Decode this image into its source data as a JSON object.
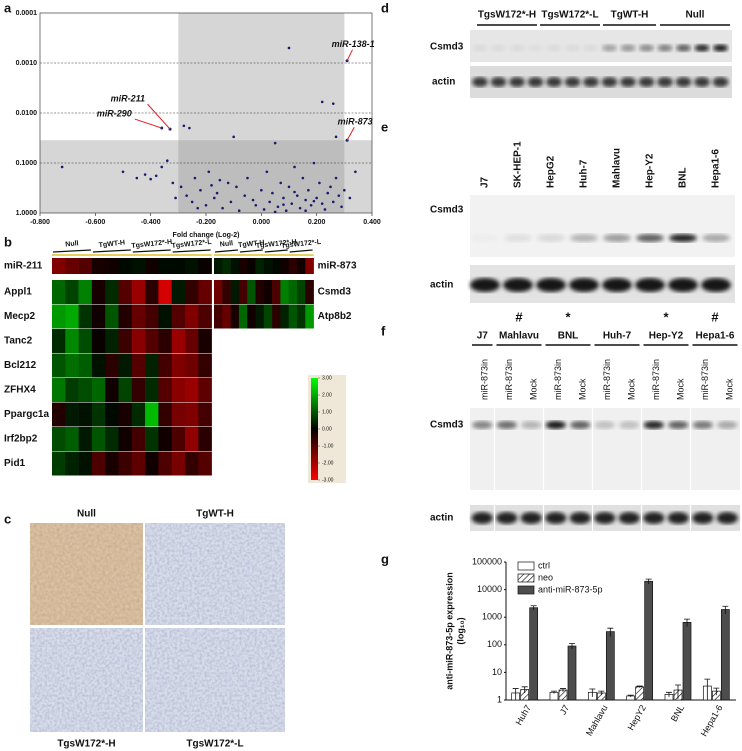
{
  "panel_labels": [
    "a",
    "b",
    "c",
    "d",
    "e",
    "f",
    "g"
  ],
  "chart_data": [
    {
      "type": "scatter",
      "xlabel": "Fold change (Log-2)",
      "color": "#1a1a6e",
      "log_y": true,
      "reverse_y": true,
      "xlim": [
        -0.8,
        0.4
      ],
      "ylim": [
        0.0001,
        1
      ],
      "xticks": [
        {
          "value": -0.8,
          "label": "-0.800"
        },
        {
          "value": -0.6,
          "label": "-0.600"
        },
        {
          "value": -0.4,
          "label": "-0.400"
        },
        {
          "value": -0.2,
          "label": "-0.200"
        },
        {
          "value": 0,
          "label": "0.000"
        },
        {
          "value": 0.2,
          "label": "0.200"
        },
        {
          "value": 0.4,
          "label": "0.400"
        }
      ],
      "yticks": [
        {
          "value": 0.0001,
          "label": "0.0001"
        },
        {
          "value": 0.001,
          "label": "0.0010"
        },
        {
          "value": 0.01,
          "label": "0.0100"
        },
        {
          "value": 0.1,
          "label": "0.1000"
        },
        {
          "value": 1,
          "label": "1.0000"
        }
      ],
      "grid": true,
      "shaded_x": [
        -0.3,
        0.3
      ],
      "shaded_y": [
        0.035,
        1
      ],
      "x": [
        0.1,
        0.22,
        0.26,
        -0.28,
        -0.26,
        0.27,
        -0.1,
        0.05,
        -0.72,
        -0.5,
        -0.45,
        -0.42,
        -0.4,
        -0.38,
        -0.36,
        -0.34,
        -0.32,
        -0.31,
        -0.29,
        -0.27,
        -0.25,
        -0.24,
        -0.22,
        -0.2,
        -0.19,
        -0.17,
        -0.16,
        -0.14,
        -0.12,
        -0.11,
        -0.09,
        -0.08,
        -0.06,
        -0.05,
        -0.03,
        -0.02,
        0.0,
        0.01,
        0.02,
        0.03,
        0.04,
        0.06,
        0.07,
        0.08,
        0.09,
        0.1,
        0.11,
        0.12,
        0.13,
        0.14,
        0.15,
        0.16,
        0.17,
        0.18,
        0.19,
        0.2,
        0.21,
        0.22,
        0.23,
        0.24,
        0.25,
        0.26,
        0.27,
        0.28,
        0.29,
        0.3,
        0.32,
        0.34,
        -0.23,
        -0.18,
        0.05,
        0.12,
        0.19,
        -0.15,
        0.08,
        0.16
      ],
      "y": [
        0.0005,
        0.006,
        0.0065,
        0.018,
        0.02,
        0.03,
        0.03,
        0.04,
        0.12,
        0.15,
        0.2,
        0.17,
        0.21,
        0.18,
        0.12,
        0.09,
        0.25,
        0.5,
        0.3,
        0.45,
        0.6,
        0.2,
        0.35,
        0.7,
        0.15,
        0.5,
        0.4,
        0.8,
        0.25,
        0.6,
        0.3,
        0.9,
        0.45,
        0.2,
        0.55,
        0.7,
        0.35,
        0.85,
        0.15,
        0.6,
        0.4,
        0.75,
        0.25,
        0.5,
        0.9,
        0.3,
        0.65,
        0.12,
        0.45,
        0.8,
        0.2,
        0.55,
        0.35,
        0.7,
        0.1,
        0.5,
        0.25,
        0.65,
        0.85,
        0.4,
        0.3,
        0.6,
        0.2,
        0.45,
        0.75,
        0.35,
        0.5,
        0.15,
        0.8,
        0.28,
        0.95,
        0.38,
        0.58,
        0.22,
        0.68,
        0.9
      ],
      "annotations": [
        {
          "text": "miR-138-1",
          "x": 0.31,
          "y": 0.0009,
          "color": "#e02020"
        },
        {
          "text": "miR-873",
          "x": 0.31,
          "y": 0.035,
          "color": "#e02020"
        },
        {
          "text": "miR-211",
          "x": -0.33,
          "y": 0.021,
          "color": "#e02020"
        },
        {
          "text": "miR-290",
          "x": -0.36,
          "y": 0.02,
          "color": "#e02020"
        }
      ]
    },
    {
      "type": "heatmap",
      "groups": [
        "Null",
        "TgWT-H",
        "TgsW172*-H",
        "TgsW172*-L"
      ],
      "rows": [
        "miR-211",
        "Appl1",
        "Mecp2",
        "Tanc2",
        "Bcl212",
        "ZFHX4",
        "Ppargc1a",
        "Irf2bp2",
        "Pid1"
      ],
      "values": [
        [
          -1.5,
          -1.2,
          -1.0,
          -0.3,
          -0.2,
          0.1,
          0.2,
          -0.2,
          0.1,
          0.1,
          0.2,
          -0.1
        ],
        [
          1.2,
          0.8,
          1.5,
          -0.3,
          0.5,
          -1.0,
          -1.8,
          -0.5,
          -2.5,
          0.3,
          -0.6,
          -1.2
        ],
        [
          1.8,
          2.0,
          0.6,
          -0.2,
          1.0,
          -0.4,
          -1.2,
          -0.8,
          0.2,
          -1.0,
          -1.5,
          -0.9
        ],
        [
          0.5,
          1.6,
          0.9,
          -0.1,
          0.4,
          -0.7,
          -1.6,
          -1.0,
          -0.5,
          -1.8,
          -1.2,
          -0.3
        ],
        [
          1.0,
          1.3,
          1.1,
          0.2,
          -0.5,
          0.3,
          -1.0,
          0.4,
          -0.8,
          -1.5,
          -1.3,
          -0.6
        ],
        [
          1.4,
          0.7,
          0.9,
          1.2,
          -0.2,
          0.8,
          -0.6,
          0.5,
          -1.0,
          -1.6,
          -1.8,
          -1.1
        ],
        [
          -0.4,
          0.3,
          0.2,
          0.6,
          0.1,
          -0.3,
          0.5,
          2.2,
          -0.6,
          -1.4,
          -1.5,
          -0.8
        ],
        [
          0.9,
          1.1,
          0.3,
          1.0,
          0.5,
          -0.2,
          -0.8,
          0.6,
          -0.2,
          -0.9,
          -1.7,
          -0.5
        ],
        [
          0.7,
          0.4,
          0.2,
          -0.9,
          -0.3,
          -0.7,
          -1.1,
          -0.2,
          -0.9,
          -1.4,
          -0.6,
          -1.0
        ]
      ],
      "clim": [
        -3,
        3
      ],
      "colorbar_ticks": [
        {
          "value": 3,
          "label": "3.00"
        },
        {
          "value": 2,
          "label": "2.00"
        },
        {
          "value": 1,
          "label": "1.00"
        },
        {
          "value": 0,
          "label": "0.00"
        },
        {
          "value": -1,
          "label": "-1.00"
        },
        {
          "value": -2,
          "label": "-2.00"
        },
        {
          "value": -3,
          "label": "-3.00"
        }
      ]
    },
    {
      "type": "heatmap",
      "groups": [
        "Null",
        "TgWT-H",
        "TgsW172*-H",
        "TgsW172*-L"
      ],
      "rows": [
        "miR-873",
        "Csmd3",
        "Atp8b2"
      ],
      "values": [
        [
          0.3,
          0.5,
          0.2,
          -0.3,
          -0.1,
          0.4,
          0.2,
          0.1,
          -0.2,
          -0.5,
          -0.2,
          -1.5
        ],
        [
          -1.3,
          -0.6,
          0.3,
          -0.8,
          1.0,
          -0.4,
          -0.2,
          -0.9,
          1.5,
          1.2,
          0.8,
          -0.5
        ],
        [
          -0.8,
          -1.2,
          -0.3,
          1.2,
          -0.2,
          0.3,
          0.8,
          -0.5,
          0.4,
          1.0,
          0.6,
          1.8
        ]
      ],
      "clim": [
        -3,
        3
      ]
    },
    {
      "type": "bar",
      "log_y": true,
      "ylabel": [
        "anti-miR-873-5p expression",
        "(log₁₀)"
      ],
      "categories": [
        "Huh7",
        "J7",
        "Mahlavu",
        "HepY2",
        "BNL",
        "Hepa1-6"
      ],
      "ylim": [
        1,
        100000
      ],
      "yticks": [
        1,
        10,
        100,
        1000,
        10000,
        100000
      ],
      "series": [
        {
          "name": "ctrl",
          "color": "#ffffff",
          "values": [
            1.8,
            1.9,
            1.9,
            1.4,
            1.6,
            3.2
          ],
          "errors": [
            0.8,
            0.2,
            0.6,
            0.1,
            0.3,
            2.5
          ]
        },
        {
          "name": "neo",
          "color": "#ffffff",
          "hatch": true,
          "values": [
            2.4,
            2.3,
            1.8,
            3.0,
            2.3,
            2.1
          ],
          "errors": [
            0.6,
            0.3,
            0.3,
            0.2,
            1.2,
            0.6
          ]
        },
        {
          "name": "anti-miR-873-5p",
          "color": "#4d4d4d",
          "values": [
            2200,
            90,
            300,
            20000,
            650,
            1900
          ],
          "errors": [
            400,
            20,
            100,
            4000,
            200,
            600
          ]
        }
      ],
      "legend": "top-left"
    }
  ],
  "panel_c": {
    "labels": [
      "Null",
      "TgWT-H",
      "TgsW172*-H",
      "TgsW172*-L"
    ]
  },
  "panel_d": {
    "groups": [
      "TgsW172*-H",
      "TgsW172*-L",
      "TgWT-H",
      "Null"
    ],
    "rows": [
      "Csmd3",
      "actin"
    ]
  },
  "panel_e": {
    "lanes": [
      "J7",
      "SK-HEP-1",
      "HepG2",
      "Huh-7",
      "Mahlavu",
      "Hep-Y2",
      "BNL",
      "Hepa1-6"
    ],
    "rows": [
      "Csmd3",
      "actin"
    ]
  },
  "panel_f": {
    "groups": [
      {
        "name": "J7",
        "lanes": [
          "miR-873in"
        ]
      },
      {
        "marker": "#",
        "name": "Mahlavu",
        "lanes": [
          "miR-873in",
          "Mock"
        ]
      },
      {
        "marker": "*",
        "name": "BNL",
        "lanes": [
          "miR-873in",
          "Mock"
        ]
      },
      {
        "name": "Huh-7",
        "lanes": [
          "miR-873in",
          "Mock"
        ]
      },
      {
        "marker": "*",
        "name": "Hep-Y2",
        "lanes": [
          "miR-873in",
          "Mock"
        ]
      },
      {
        "marker": "#",
        "name": "Hepa1-6",
        "lanes": [
          "miR-873in",
          "Mock"
        ]
      }
    ],
    "rows": [
      "Csmd3",
      "actin"
    ]
  }
}
